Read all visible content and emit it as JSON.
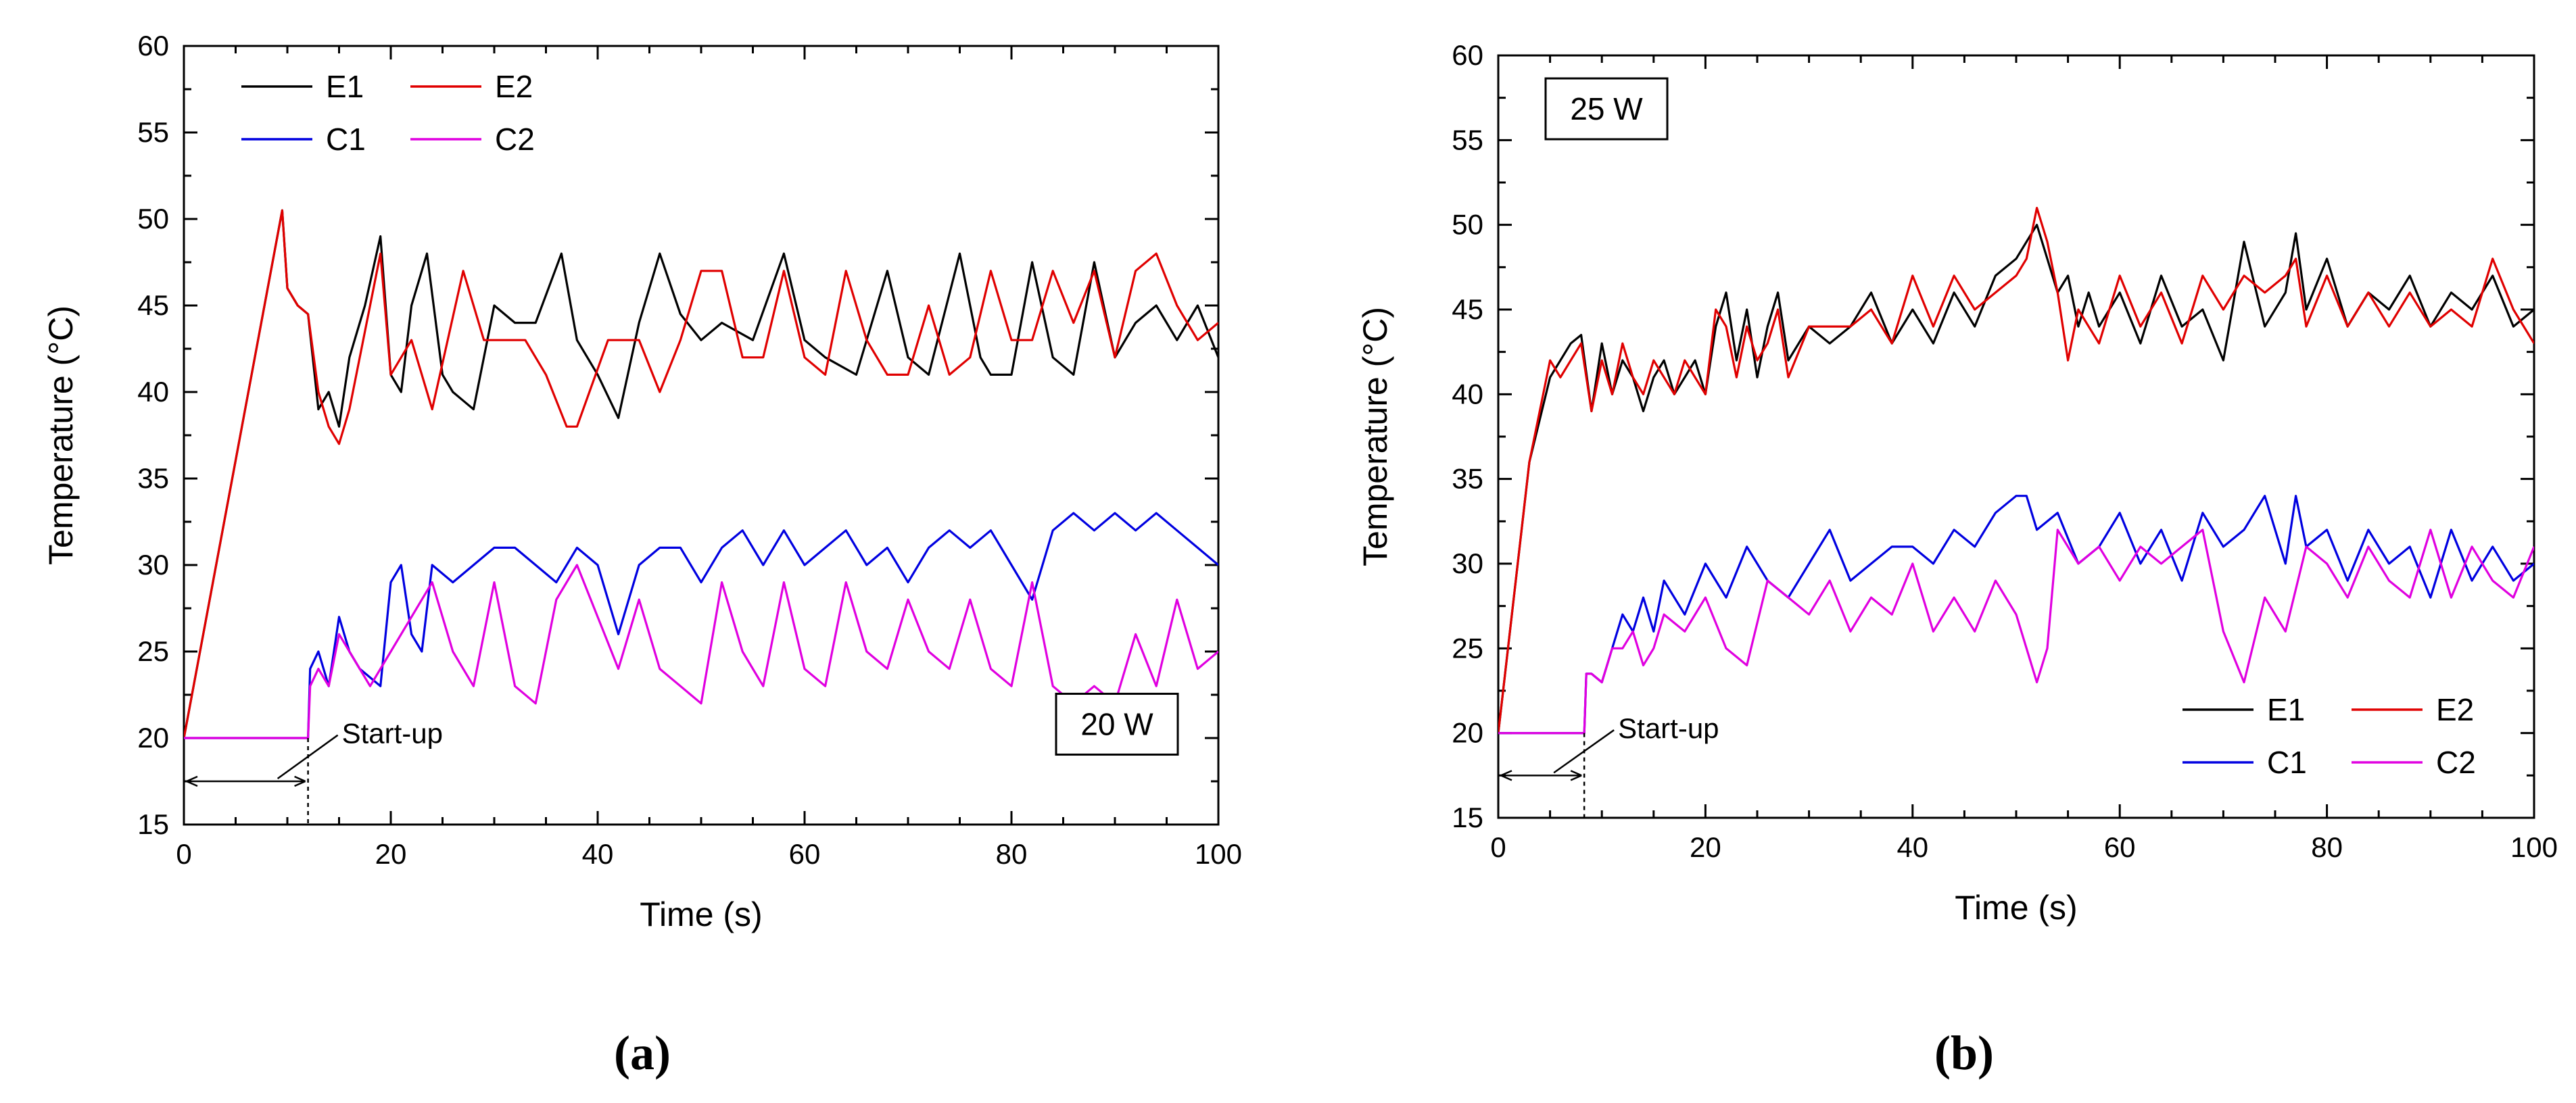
{
  "figure": {
    "panel_labels": [
      "(a)",
      "(b)"
    ]
  },
  "chart_data": [
    {
      "type": "line",
      "panel": "(a)",
      "annotation_box": "20 W",
      "startup_label": "Start-up",
      "startup_time": 12,
      "xlabel": "Time (s)",
      "ylabel": "Temperature (°C)",
      "xlim": [
        0,
        100
      ],
      "ylim": [
        15,
        60
      ],
      "xticks": [
        0,
        20,
        40,
        60,
        80,
        100
      ],
      "yticks": [
        15,
        20,
        25,
        30,
        35,
        40,
        45,
        50,
        55,
        60
      ],
      "legend_position": "top-left",
      "series": [
        {
          "name": "E1",
          "color": "#000000",
          "x": [
            0,
            9.5,
            10,
            11,
            12,
            13,
            14,
            15,
            16,
            17.5,
            19,
            20,
            21,
            22,
            23.5,
            25,
            26,
            27,
            28,
            30,
            32,
            34,
            36.5,
            38,
            40,
            42,
            44,
            46,
            48,
            50,
            52,
            55,
            58,
            60,
            62,
            65,
            68,
            70,
            72,
            75,
            77,
            78,
            80,
            82,
            84,
            86,
            88,
            90,
            92,
            94,
            96,
            98,
            100
          ],
          "y": [
            20,
            50.5,
            46,
            45,
            44.5,
            39,
            40,
            38,
            42,
            45,
            49,
            41,
            40,
            45,
            48,
            41,
            40,
            39.5,
            39,
            45,
            44,
            44,
            48,
            43,
            41,
            38.5,
            44,
            48,
            44.5,
            43,
            44,
            43,
            48,
            43,
            42,
            41,
            47,
            42,
            41,
            48,
            42,
            41,
            41,
            47.5,
            42,
            41,
            47.5,
            42,
            44,
            45,
            43,
            45,
            42
          ]
        },
        {
          "name": "E2",
          "color": "#e00000",
          "x": [
            0,
            9.5,
            10,
            11,
            12,
            13,
            14,
            15,
            16,
            18,
            19,
            20,
            22,
            24,
            27,
            29,
            31,
            33,
            35,
            37,
            38,
            41,
            44,
            46,
            48,
            50,
            52,
            54,
            56,
            58,
            60,
            62,
            64,
            66,
            68,
            70,
            72,
            74,
            76,
            78,
            80,
            82,
            84,
            86,
            88,
            90,
            92,
            94,
            96,
            98,
            100
          ],
          "y": [
            20,
            50.5,
            46,
            45,
            44.5,
            40,
            38,
            37,
            39,
            45,
            48,
            41,
            43,
            39,
            47,
            43,
            43,
            43,
            41,
            38,
            38,
            43,
            43,
            40,
            43,
            47,
            47,
            42,
            42,
            47,
            42,
            41,
            47,
            43,
            41,
            41,
            45,
            41,
            42,
            47,
            43,
            43,
            47,
            44,
            47,
            42,
            47,
            48,
            45,
            43,
            44
          ]
        },
        {
          "name": "C1",
          "color": "#0000e0",
          "x": [
            0,
            12,
            12.2,
            13,
            14,
            15,
            16,
            17,
            18,
            19,
            20,
            21,
            22,
            23,
            24,
            26,
            28,
            30,
            32,
            34,
            36,
            38,
            40,
            42,
            44,
            46,
            48,
            50,
            52,
            54,
            56,
            58,
            60,
            62,
            64,
            66,
            68,
            70,
            72,
            74,
            76,
            78,
            80,
            82,
            84,
            86,
            88,
            90,
            92,
            94,
            96,
            98,
            100
          ],
          "y": [
            20,
            20,
            24,
            25,
            23,
            27,
            25,
            24,
            23.5,
            23,
            29,
            30,
            26,
            25,
            30,
            29,
            30,
            31,
            31,
            30,
            29,
            31,
            30,
            26,
            30,
            31,
            31,
            29,
            31,
            32,
            30,
            32,
            30,
            31,
            32,
            30,
            31,
            29,
            31,
            32,
            31,
            32,
            30,
            28,
            32,
            33,
            32,
            33,
            32,
            33,
            32,
            31,
            30
          ]
        },
        {
          "name": "C2",
          "color": "#e000e0",
          "x": [
            0,
            12,
            12.2,
            13,
            14,
            15,
            16,
            18,
            20,
            22,
            24,
            26,
            28,
            30,
            32,
            34,
            36,
            38,
            40,
            42,
            44,
            46,
            48,
            50,
            52,
            54,
            56,
            58,
            60,
            62,
            64,
            66,
            68,
            70,
            72,
            74,
            76,
            78,
            80,
            82,
            84,
            86,
            88,
            90,
            92,
            94,
            96,
            98,
            100
          ],
          "y": [
            20,
            20,
            23,
            24,
            23,
            26,
            25,
            23,
            25,
            27,
            29,
            25,
            23,
            29,
            23,
            22,
            28,
            30,
            27,
            24,
            28,
            24,
            23,
            22,
            29,
            25,
            23,
            29,
            24,
            23,
            29,
            25,
            24,
            28,
            25,
            24,
            28,
            24,
            23,
            29,
            23,
            22,
            23,
            22,
            26,
            23,
            28,
            24,
            25
          ]
        }
      ]
    },
    {
      "type": "line",
      "panel": "(b)",
      "annotation_box": "25 W",
      "startup_label": "Start-up",
      "startup_time": 8.3,
      "xlabel": "Time (s)",
      "ylabel": "Temperature (°C)",
      "xlim": [
        0,
        100
      ],
      "ylim": [
        15,
        60
      ],
      "xticks": [
        0,
        20,
        40,
        60,
        80,
        100
      ],
      "yticks": [
        15,
        20,
        25,
        30,
        35,
        40,
        45,
        50,
        55,
        60
      ],
      "legend_position": "bottom-right",
      "series": [
        {
          "name": "E1",
          "color": "#000000",
          "x": [
            0,
            3,
            5,
            6,
            7,
            8,
            9,
            10,
            11,
            12,
            13,
            14,
            15,
            16,
            17,
            18,
            19,
            20,
            21,
            22,
            23,
            24,
            25,
            26,
            27,
            28,
            30,
            32,
            34,
            36,
            38,
            40,
            42,
            44,
            46,
            48,
            50,
            51,
            52,
            53,
            54,
            55,
            56,
            57,
            58,
            60,
            62,
            64,
            66,
            68,
            70,
            72,
            74,
            76,
            77,
            78,
            80,
            82,
            84,
            86,
            88,
            90,
            92,
            94,
            96,
            98,
            100
          ],
          "y": [
            20,
            36,
            41,
            42,
            43,
            43.5,
            39,
            43,
            40,
            42,
            41,
            39,
            41,
            42,
            40,
            41,
            42,
            40,
            44,
            46,
            42,
            45,
            41,
            44,
            46,
            42,
            44,
            43,
            44,
            46,
            43,
            45,
            43,
            46,
            44,
            47,
            48,
            49,
            50,
            48,
            46,
            47,
            44,
            46,
            44,
            46,
            43,
            47,
            44,
            45,
            42,
            49,
            44,
            46,
            49.5,
            45,
            48,
            44,
            46,
            45,
            47,
            44,
            46,
            45,
            47,
            44,
            45
          ]
        },
        {
          "name": "E2",
          "color": "#e00000",
          "x": [
            0,
            3,
            5,
            6,
            7,
            8,
            9,
            10,
            11,
            12,
            13,
            14,
            15,
            16,
            17,
            18,
            19,
            20,
            21,
            22,
            23,
            24,
            25,
            26,
            27,
            28,
            30,
            32,
            34,
            36,
            38,
            40,
            42,
            44,
            46,
            48,
            50,
            51,
            52,
            53,
            54,
            55,
            56,
            57,
            58,
            60,
            62,
            64,
            66,
            68,
            70,
            72,
            74,
            76,
            77,
            78,
            80,
            82,
            84,
            86,
            88,
            90,
            92,
            94,
            96,
            98,
            100
          ],
          "y": [
            20,
            36,
            42,
            41,
            42,
            43,
            39,
            42,
            40,
            43,
            41,
            40,
            42,
            41,
            40,
            42,
            41,
            40,
            45,
            44,
            41,
            44,
            42,
            43,
            45,
            41,
            44,
            44,
            44,
            45,
            43,
            47,
            44,
            47,
            45,
            46,
            47,
            48,
            51,
            49,
            46,
            42,
            45,
            44,
            43,
            47,
            44,
            46,
            43,
            47,
            45,
            47,
            46,
            47,
            48,
            44,
            47,
            44,
            46,
            44,
            46,
            44,
            45,
            44,
            48,
            45,
            43
          ]
        },
        {
          "name": "C1",
          "color": "#0000e0",
          "x": [
            0,
            8.3,
            8.5,
            9,
            10,
            11,
            12,
            13,
            14,
            15,
            16,
            18,
            20,
            22,
            24,
            26,
            28,
            30,
            32,
            34,
            36,
            38,
            40,
            42,
            44,
            46,
            48,
            50,
            51,
            52,
            54,
            56,
            58,
            60,
            62,
            64,
            66,
            68,
            70,
            72,
            74,
            76,
            77,
            78,
            80,
            82,
            84,
            86,
            88,
            90,
            92,
            94,
            96,
            98,
            100
          ],
          "y": [
            20,
            20,
            23.5,
            23.5,
            23,
            25,
            27,
            26,
            28,
            26,
            29,
            27,
            30,
            28,
            31,
            29,
            28,
            30,
            32,
            29,
            30,
            31,
            31,
            30,
            32,
            31,
            33,
            34,
            34,
            32,
            33,
            30,
            31,
            33,
            30,
            32,
            29,
            33,
            31,
            32,
            34,
            30,
            34,
            31,
            32,
            29,
            32,
            30,
            31,
            28,
            32,
            29,
            31,
            29,
            30
          ]
        },
        {
          "name": "C2",
          "color": "#e000e0",
          "x": [
            0,
            8.3,
            8.5,
            9,
            10,
            11,
            12,
            13,
            14,
            15,
            16,
            18,
            20,
            22,
            24,
            26,
            28,
            30,
            32,
            34,
            36,
            38,
            40,
            42,
            44,
            46,
            48,
            50,
            52,
            53,
            54,
            56,
            58,
            60,
            62,
            64,
            66,
            68,
            70,
            72,
            74,
            76,
            78,
            80,
            82,
            84,
            86,
            88,
            90,
            92,
            94,
            96,
            98,
            100
          ],
          "y": [
            20,
            20,
            23.5,
            23.5,
            23,
            25,
            25,
            26,
            24,
            25,
            27,
            26,
            28,
            25,
            24,
            29,
            28,
            27,
            29,
            26,
            28,
            27,
            30,
            26,
            28,
            26,
            29,
            27,
            23,
            25,
            32,
            30,
            31,
            29,
            31,
            30,
            31,
            32,
            26,
            23,
            28,
            26,
            31,
            30,
            28,
            31,
            29,
            28,
            32,
            28,
            31,
            29,
            28,
            31
          ]
        }
      ]
    }
  ]
}
